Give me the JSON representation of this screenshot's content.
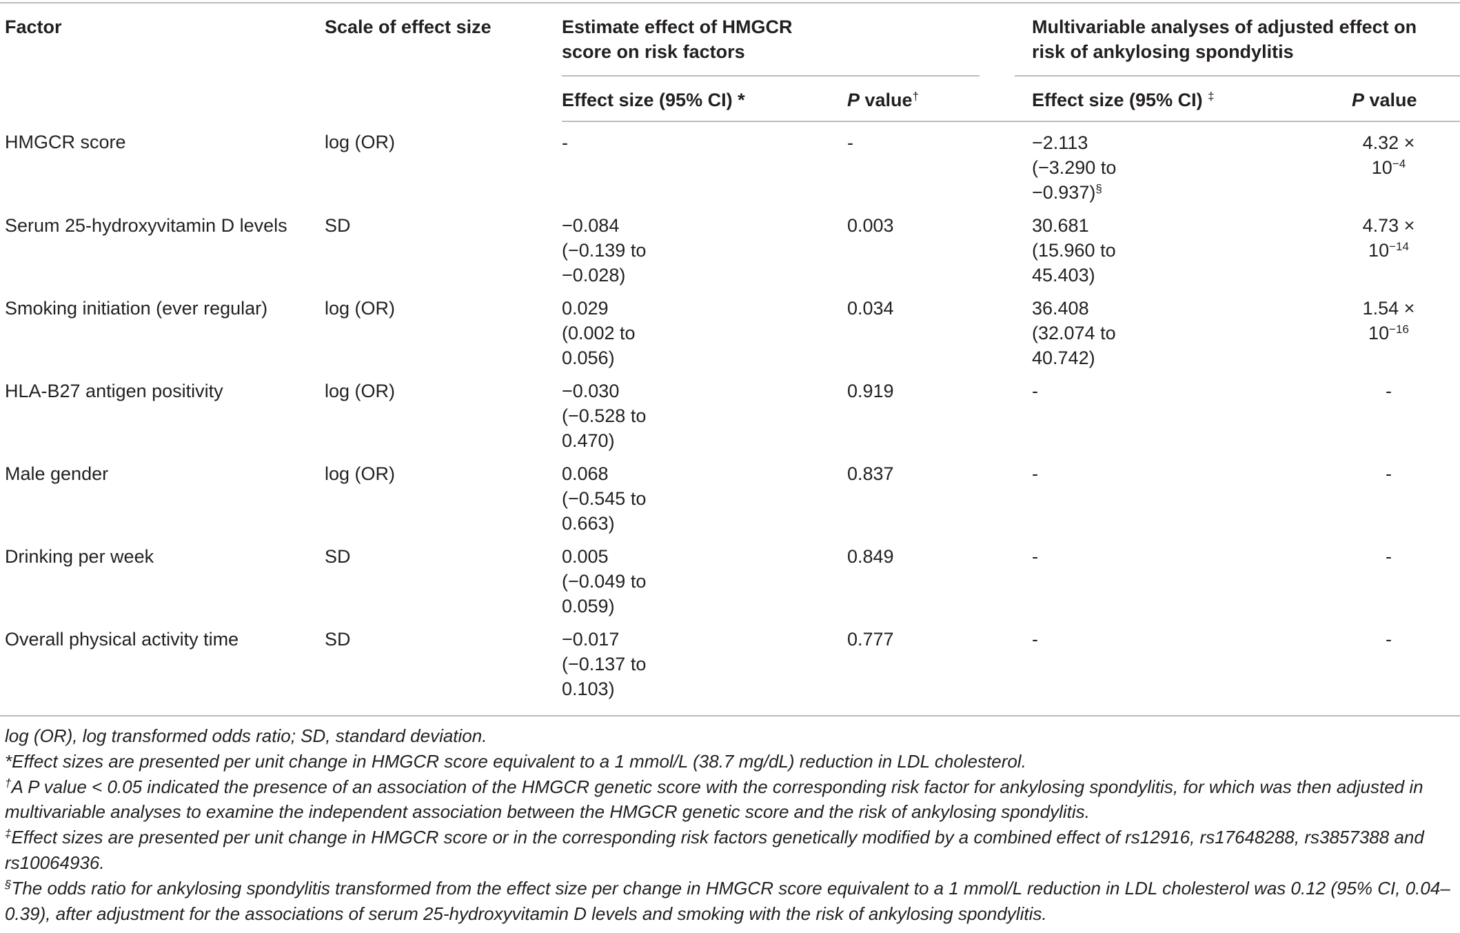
{
  "table": {
    "header": {
      "factor": "Factor",
      "scale": "Scale of effect size",
      "estimate_group": "Estimate effect of HMGCR score on risk factors",
      "adjusted_group": "Multivariable analyses of adjusted effect on risk of ankylosing spondylitis",
      "estimate_effect": "Effect size (95% CI) *",
      "estimate_p": {
        "italic": "P",
        "text": " value",
        "sup": "†"
      },
      "adjusted_effect": {
        "text": "Effect size (95% CI) ",
        "sup": "‡"
      },
      "adjusted_p": {
        "italic": "P",
        "text": " value"
      }
    },
    "rows": [
      {
        "factor": "HMGCR score",
        "scale": "log (OR)",
        "estimate": "-",
        "p_value": "-",
        "adjusted": {
          "value": "−2.113",
          "ci": "(−3.290 to −0.937)",
          "note": "§"
        },
        "adjusted_p": {
          "coefficient": "4.32 ×",
          "power": "10",
          "exponent": "−4"
        }
      },
      {
        "factor": "Serum 25-hydroxyvitamin D levels",
        "scale": "SD",
        "estimate": {
          "value": "−0.084",
          "ci": "(−0.139 to −0.028)"
        },
        "p_value": "0.003",
        "adjusted": {
          "value": "30.681",
          "ci": "(15.960 to 45.403)"
        },
        "adjusted_p": {
          "coefficient": "4.73 ×",
          "power": "10",
          "exponent": "−14"
        }
      },
      {
        "factor": "Smoking initiation (ever regular)",
        "scale": "log (OR)",
        "estimate": {
          "value": "0.029",
          "ci": "(0.002 to 0.056)"
        },
        "p_value": "0.034",
        "adjusted": {
          "value": "36.408",
          "ci": "(32.074 to 40.742)"
        },
        "adjusted_p": {
          "coefficient": "1.54 ×",
          "power": "10",
          "exponent": "−16"
        }
      },
      {
        "factor": "HLA-B27 antigen positivity",
        "scale": "log (OR)",
        "estimate": {
          "value": "−0.030",
          "ci": "(−0.528 to 0.470)"
        },
        "p_value": "0.919",
        "adjusted": "-",
        "adjusted_p": "-"
      },
      {
        "factor": "Male gender",
        "scale": "log (OR)",
        "estimate": {
          "value": "0.068",
          "ci": "(−0.545 to 0.663)"
        },
        "p_value": "0.837",
        "adjusted": "-",
        "adjusted_p": "-"
      },
      {
        "factor": "Drinking per week",
        "scale": "SD",
        "estimate": {
          "value": "0.005",
          "ci": "(−0.049 to 0.059)"
        },
        "p_value": "0.849",
        "adjusted": "-",
        "adjusted_p": "-"
      },
      {
        "factor": "Overall physical activity time",
        "scale": "SD",
        "estimate": {
          "value": "−0.017",
          "ci": "(−0.137 to 0.103)"
        },
        "p_value": "0.777",
        "adjusted": "-",
        "adjusted_p": "-"
      }
    ],
    "footnotes": [
      {
        "text": "log (OR), log transformed odds ratio; SD, standard deviation."
      },
      {
        "text": "*Effect sizes are presented per unit change in HMGCR score equivalent to a 1 mmol/L (38.7 mg/dL) reduction in LDL cholesterol."
      },
      {
        "marker": "†",
        "text": "A P value < 0.05 indicated the presence of an association of the HMGCR genetic score with the corresponding risk factor for ankylosing spondylitis, for which was then adjusted in multivariable analyses to examine the independent association between the HMGCR genetic score and the risk of ankylosing spondylitis."
      },
      {
        "marker": "‡",
        "text": "Effect sizes are presented per unit change in HMGCR score or in the corresponding risk factors genetically modified by a combined effect of rs12916, rs17648288, rs3857388 and rs10064936."
      },
      {
        "marker": "§",
        "text": "The odds ratio for ankylosing spondylitis transformed from the effect size per change in HMGCR score equivalent to a 1 mmol/L reduction in LDL cholesterol was 0.12 (95% CI, 0.04–0.39), after adjustment for the associations of serum 25-hydroxyvitamin D levels and smoking with the risk of ankylosing spondylitis."
      }
    ]
  }
}
